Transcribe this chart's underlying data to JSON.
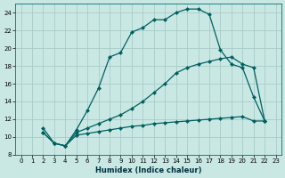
{
  "xlabel": "Humidex (Indice chaleur)",
  "background_color": "#c9e8e4",
  "grid_color": "#a8ccc8",
  "line_color": "#006060",
  "xlim": [
    -0.5,
    23.5
  ],
  "ylim": [
    8,
    25
  ],
  "xticks": [
    0,
    1,
    2,
    3,
    4,
    5,
    6,
    7,
    8,
    9,
    10,
    11,
    12,
    13,
    14,
    15,
    16,
    17,
    18,
    19,
    20,
    21,
    22,
    23
  ],
  "yticks": [
    8,
    10,
    12,
    14,
    16,
    18,
    20,
    22,
    24
  ],
  "curve1_x": [
    2,
    3,
    4,
    5,
    6,
    7,
    8,
    9,
    10,
    11,
    12,
    13,
    14,
    15,
    16,
    17,
    18,
    19,
    20,
    21,
    22
  ],
  "curve1_y": [
    11.0,
    9.3,
    9.0,
    10.8,
    13.0,
    15.5,
    19.0,
    19.5,
    21.8,
    22.3,
    23.2,
    23.2,
    24.0,
    24.4,
    24.4,
    23.8,
    19.8,
    18.2,
    17.8,
    14.5,
    11.8
  ],
  "curve2_x": [
    2,
    3,
    4,
    5,
    6,
    7,
    8,
    9,
    10,
    11,
    12,
    13,
    14,
    15,
    16,
    17,
    18,
    19,
    20,
    21,
    22
  ],
  "curve2_y": [
    10.5,
    9.3,
    9.0,
    10.5,
    11.0,
    11.5,
    12.0,
    12.5,
    13.2,
    14.0,
    15.0,
    16.0,
    17.2,
    17.8,
    18.2,
    18.5,
    18.8,
    19.0,
    18.2,
    17.8,
    11.8
  ],
  "curve3_x": [
    2,
    3,
    4,
    5,
    6,
    7,
    8,
    9,
    10,
    11,
    12,
    13,
    14,
    15,
    16,
    17,
    18,
    19,
    20,
    21,
    22
  ],
  "curve3_y": [
    10.5,
    9.3,
    9.0,
    10.2,
    10.4,
    10.6,
    10.8,
    11.0,
    11.2,
    11.3,
    11.5,
    11.6,
    11.7,
    11.8,
    11.9,
    12.0,
    12.1,
    12.2,
    12.3,
    11.8,
    11.8
  ]
}
